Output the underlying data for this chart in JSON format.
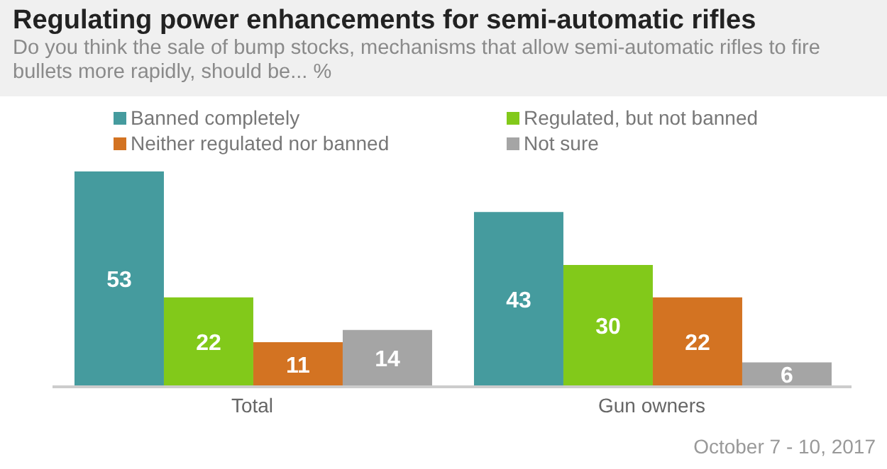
{
  "chart_data": {
    "type": "bar",
    "title": "Regulating power enhancements for semi-automatic rifles",
    "subtitle": "Do you think the sale of bump stocks, mechanisms that allow semi-automatic rifles to fire bullets more rapidly, should be... %",
    "categories": [
      "Total",
      "Gun owners"
    ],
    "series": [
      {
        "name": "Banned completely",
        "color": "#459b9e",
        "values": [
          53,
          43
        ]
      },
      {
        "name": "Regulated, but not banned",
        "color": "#82c91a",
        "values": [
          22,
          30
        ]
      },
      {
        "name": "Neither regulated nor banned",
        "color": "#d37322",
        "values": [
          11,
          22
        ]
      },
      {
        "name": "Not sure",
        "color": "#a5a5a5",
        "values": [
          14,
          6
        ]
      }
    ],
    "data_labels": true,
    "legend": "top",
    "annotations": [
      "October 7 - 10, 2017"
    ]
  }
}
